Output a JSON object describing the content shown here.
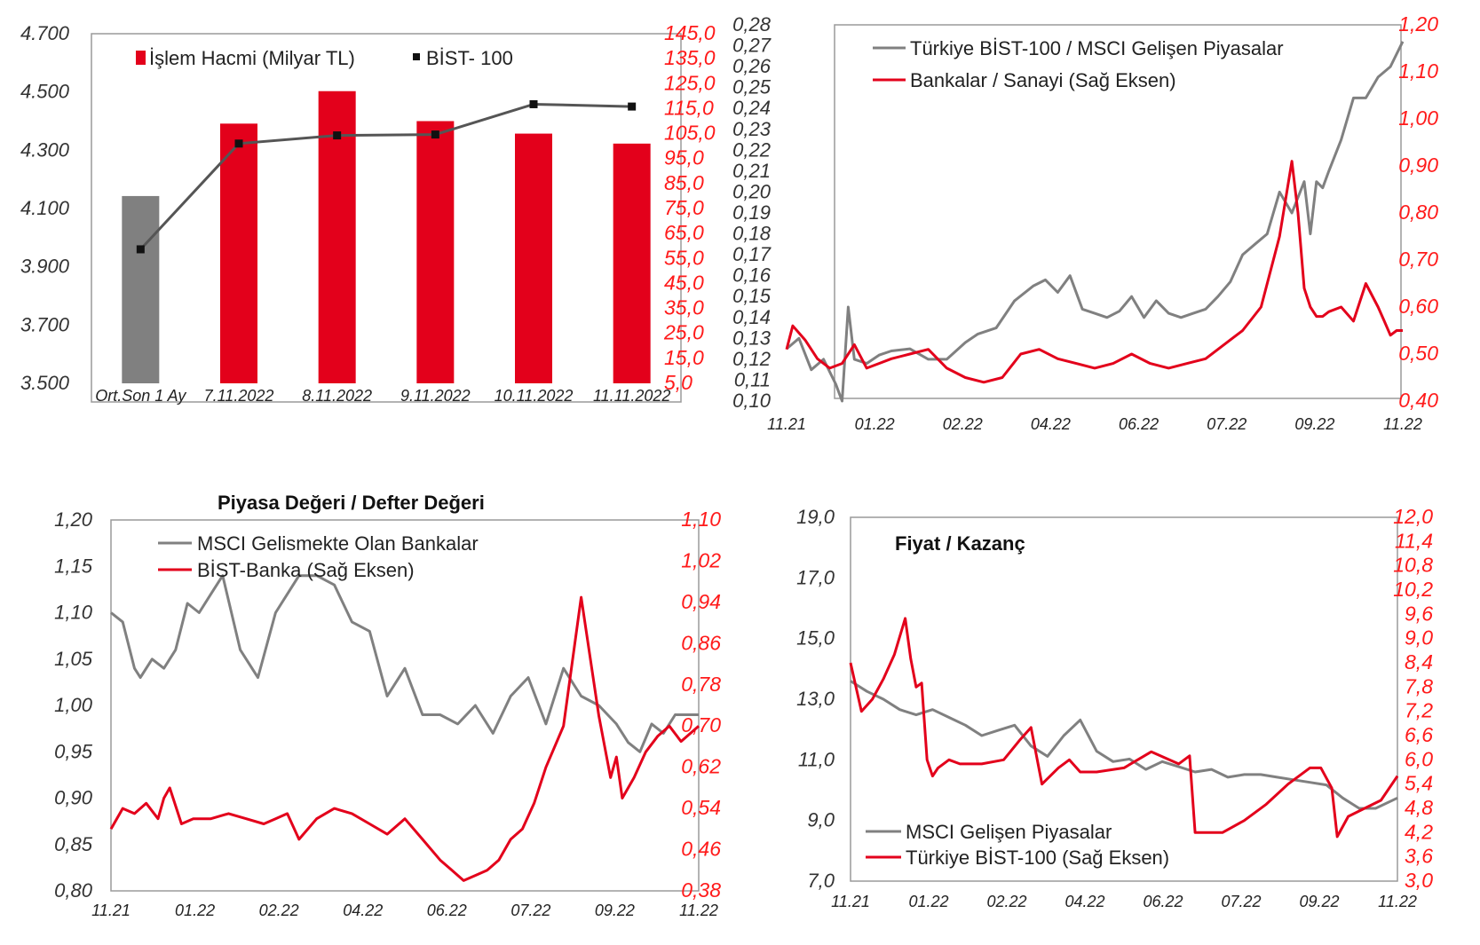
{
  "colors": {
    "red": "#e3001b",
    "gray": "#808080",
    "frame": "#9a9a9a",
    "axis_red": "#ff1a1a"
  },
  "chart_data": [
    {
      "type": "bar",
      "title": "",
      "categories": [
        "Ort.Son 1 Ay",
        "7.11.2022",
        "8.11.2022",
        "9.11.2022",
        "10.11.2022",
        "11.11.2022"
      ],
      "series": [
        {
          "name": "İşlem Hacmi (Milyar TL)",
          "axis": "right",
          "values": [
            80,
            109,
            122,
            110,
            105,
            101
          ]
        },
        {
          "name": "BİST- 100",
          "axis": "left",
          "type": "line",
          "values": [
            3960,
            4323,
            4351,
            4354,
            4458,
            4450
          ]
        }
      ],
      "ylim_left": [
        3500,
        4700
      ],
      "yticks_left": [
        "3.500",
        "3.700",
        "3.900",
        "4.100",
        "4.300",
        "4.500",
        "4.700"
      ],
      "ylim_right": [
        5,
        145
      ],
      "yticks_right": [
        "5,0",
        "15,0",
        "25,0",
        "35,0",
        "45,0",
        "55,0",
        "65,0",
        "75,0",
        "85,0",
        "95,0",
        "105,0",
        "115,0",
        "125,0",
        "135,0",
        "145,0"
      ],
      "legend": [
        "İşlem Hacmi (Milyar TL)",
        "BİST- 100"
      ],
      "legend_position": "top"
    },
    {
      "type": "line",
      "title": "",
      "xticks": [
        "11.21",
        "01.22",
        "02.22",
        "04.22",
        "06.22",
        "07.22",
        "09.22",
        "11.22"
      ],
      "ylim_left": [
        0.1,
        0.28
      ],
      "yticks_left": [
        "0,10",
        "0,11",
        "0,12",
        "0,13",
        "0,14",
        "0,15",
        "0,16",
        "0,17",
        "0,18",
        "0,19",
        "0,20",
        "0,21",
        "0,22",
        "0,23",
        "0,24",
        "0,25",
        "0,26",
        "0,27",
        "0,28"
      ],
      "ylim_right": [
        0.4,
        1.2
      ],
      "yticks_right": [
        "0,40",
        "0,50",
        "0,60",
        "0,70",
        "0,80",
        "0,90",
        "1,00",
        "1,10",
        "1,20"
      ],
      "series": [
        {
          "name": "Türkiye BİST-100 / MSCI Gelişen Piyasalar",
          "axis": "left",
          "color": "gray",
          "x": [
            0,
            0.02,
            0.04,
            0.06,
            0.08,
            0.09,
            0.1,
            0.11,
            0.13,
            0.15,
            0.17,
            0.2,
            0.23,
            0.26,
            0.29,
            0.31,
            0.34,
            0.37,
            0.4,
            0.42,
            0.44,
            0.46,
            0.48,
            0.5,
            0.52,
            0.54,
            0.56,
            0.58,
            0.6,
            0.62,
            0.64,
            0.66,
            0.68,
            0.7,
            0.72,
            0.74,
            0.76,
            0.78,
            0.8,
            0.82,
            0.84,
            0.85,
            0.86,
            0.87,
            0.88,
            0.9,
            0.92,
            0.94,
            0.96,
            0.98,
            1.0
          ],
          "y": [
            0.125,
            0.13,
            0.115,
            0.12,
            0.108,
            0.1,
            0.145,
            0.12,
            0.118,
            0.122,
            0.124,
            0.125,
            0.12,
            0.12,
            0.128,
            0.132,
            0.135,
            0.148,
            0.155,
            0.158,
            0.152,
            0.16,
            0.144,
            0.142,
            0.14,
            0.143,
            0.15,
            0.14,
            0.148,
            0.142,
            0.14,
            0.142,
            0.144,
            0.15,
            0.157,
            0.17,
            0.175,
            0.18,
            0.2,
            0.19,
            0.205,
            0.18,
            0.205,
            0.202,
            0.21,
            0.225,
            0.245,
            0.245,
            0.255,
            0.26,
            0.272
          ]
        },
        {
          "name": "Bankalar / Sanayi (Sağ Eksen)",
          "axis": "right",
          "color": "red",
          "x": [
            0,
            0.01,
            0.03,
            0.05,
            0.07,
            0.09,
            0.11,
            0.13,
            0.15,
            0.17,
            0.2,
            0.23,
            0.26,
            0.29,
            0.32,
            0.35,
            0.38,
            0.41,
            0.44,
            0.47,
            0.5,
            0.53,
            0.56,
            0.59,
            0.62,
            0.65,
            0.68,
            0.71,
            0.74,
            0.77,
            0.8,
            0.82,
            0.83,
            0.84,
            0.85,
            0.86,
            0.87,
            0.88,
            0.9,
            0.92,
            0.94,
            0.96,
            0.97,
            0.98,
            0.99,
            1.0
          ],
          "y": [
            0.51,
            0.56,
            0.53,
            0.49,
            0.47,
            0.48,
            0.52,
            0.47,
            0.48,
            0.49,
            0.5,
            0.51,
            0.47,
            0.45,
            0.44,
            0.45,
            0.5,
            0.51,
            0.49,
            0.48,
            0.47,
            0.48,
            0.5,
            0.48,
            0.47,
            0.48,
            0.49,
            0.52,
            0.55,
            0.6,
            0.75,
            0.91,
            0.8,
            0.64,
            0.6,
            0.58,
            0.58,
            0.59,
            0.6,
            0.57,
            0.65,
            0.6,
            0.57,
            0.54,
            0.55,
            0.55
          ]
        }
      ],
      "legend_position": "top-left"
    },
    {
      "type": "line",
      "title": "Piyasa Değeri / Defter Değeri",
      "xticks": [
        "11.21",
        "01.22",
        "02.22",
        "04.22",
        "06.22",
        "07.22",
        "09.22",
        "11.22"
      ],
      "ylim_left": [
        0.8,
        1.2
      ],
      "yticks_left": [
        "0,80",
        "0,85",
        "0,90",
        "0,95",
        "1,00",
        "1,05",
        "1,10",
        "1,15",
        "1,20"
      ],
      "ylim_right": [
        0.38,
        1.1
      ],
      "yticks_right": [
        "0,38",
        "0,46",
        "0,54",
        "0,62",
        "0,70",
        "0,78",
        "0,86",
        "0,94",
        "1,02",
        "1,10"
      ],
      "series": [
        {
          "name": "MSCI Gelismekte Olan Bankalar",
          "axis": "left",
          "color": "gray",
          "x": [
            0,
            0.02,
            0.04,
            0.05,
            0.07,
            0.09,
            0.11,
            0.13,
            0.15,
            0.17,
            0.19,
            0.22,
            0.25,
            0.28,
            0.3,
            0.32,
            0.35,
            0.38,
            0.41,
            0.44,
            0.47,
            0.5,
            0.53,
            0.56,
            0.59,
            0.62,
            0.65,
            0.68,
            0.71,
            0.74,
            0.77,
            0.8,
            0.83,
            0.86,
            0.88,
            0.9,
            0.92,
            0.94,
            0.96,
            0.98,
            1.0
          ],
          "y": [
            1.1,
            1.09,
            1.04,
            1.03,
            1.05,
            1.04,
            1.06,
            1.11,
            1.1,
            1.12,
            1.14,
            1.06,
            1.03,
            1.1,
            1.12,
            1.14,
            1.14,
            1.13,
            1.09,
            1.08,
            1.01,
            1.04,
            0.99,
            0.99,
            0.98,
            1.0,
            0.97,
            1.01,
            1.03,
            0.98,
            1.04,
            1.01,
            1.0,
            0.98,
            0.96,
            0.95,
            0.98,
            0.97,
            0.99,
            0.99,
            0.99
          ]
        },
        {
          "name": "BİST-Banka (Sağ Eksen)",
          "axis": "right",
          "color": "red",
          "x": [
            0,
            0.02,
            0.04,
            0.06,
            0.08,
            0.09,
            0.1,
            0.12,
            0.14,
            0.17,
            0.2,
            0.23,
            0.26,
            0.28,
            0.3,
            0.32,
            0.35,
            0.38,
            0.41,
            0.44,
            0.47,
            0.5,
            0.53,
            0.56,
            0.58,
            0.6,
            0.62,
            0.64,
            0.66,
            0.68,
            0.7,
            0.72,
            0.74,
            0.77,
            0.8,
            0.83,
            0.85,
            0.86,
            0.87,
            0.89,
            0.91,
            0.93,
            0.95,
            0.97,
            1.0
          ],
          "y": [
            0.5,
            0.54,
            0.53,
            0.55,
            0.52,
            0.56,
            0.58,
            0.51,
            0.52,
            0.52,
            0.53,
            0.52,
            0.51,
            0.52,
            0.53,
            0.48,
            0.52,
            0.54,
            0.53,
            0.51,
            0.49,
            0.52,
            0.48,
            0.44,
            0.42,
            0.4,
            0.41,
            0.42,
            0.44,
            0.48,
            0.5,
            0.55,
            0.62,
            0.7,
            0.95,
            0.72,
            0.6,
            0.64,
            0.56,
            0.6,
            0.65,
            0.68,
            0.7,
            0.67,
            0.7
          ]
        }
      ],
      "legend_position": "top-left"
    },
    {
      "type": "line",
      "title": "Fiyat / Kazanç",
      "xticks": [
        "11.21",
        "01.22",
        "02.22",
        "04.22",
        "06.22",
        "07.22",
        "09.22",
        "11.22"
      ],
      "ylim_left": [
        7.0,
        21.0
      ],
      "yticks_left": [
        "7,0",
        "9,0",
        "11,0",
        "13,0",
        "15,0",
        "17,0",
        "19,0"
      ],
      "ylim_right": [
        3.0,
        12.0
      ],
      "yticks_right": [
        "3,0",
        "3,6",
        "4,2",
        "4,8",
        "5,4",
        "6,0",
        "6,6",
        "7,2",
        "7,8",
        "8,4",
        "9,0",
        "9,6",
        "10,2",
        "10,8",
        "11,4",
        "12,0"
      ],
      "series": [
        {
          "name": "MSCI Gelişen Piyasalar",
          "axis": "left",
          "color": "gray",
          "x": [
            0,
            0.03,
            0.06,
            0.09,
            0.12,
            0.15,
            0.18,
            0.21,
            0.24,
            0.27,
            0.3,
            0.33,
            0.36,
            0.39,
            0.42,
            0.45,
            0.48,
            0.51,
            0.54,
            0.57,
            0.6,
            0.63,
            0.66,
            0.69,
            0.72,
            0.75,
            0.78,
            0.81,
            0.84,
            0.87,
            0.9,
            0.93,
            0.96,
            1.0
          ],
          "y": [
            14.7,
            14.3,
            14.0,
            13.6,
            13.4,
            13.6,
            13.3,
            13.0,
            12.6,
            12.8,
            13.0,
            12.2,
            11.8,
            12.6,
            13.2,
            12.0,
            11.6,
            11.7,
            11.3,
            11.6,
            11.4,
            11.2,
            11.3,
            11.0,
            11.1,
            11.1,
            11.0,
            10.9,
            10.8,
            10.7,
            10.2,
            9.8,
            9.8,
            10.2
          ]
        },
        {
          "name": "Türkiye BİST-100 (Sağ Eksen)",
          "axis": "right",
          "color": "red",
          "x": [
            0,
            0.02,
            0.04,
            0.06,
            0.08,
            0.1,
            0.11,
            0.12,
            0.13,
            0.14,
            0.15,
            0.16,
            0.18,
            0.2,
            0.24,
            0.28,
            0.31,
            0.33,
            0.35,
            0.38,
            0.4,
            0.42,
            0.45,
            0.5,
            0.55,
            0.6,
            0.62,
            0.63,
            0.65,
            0.68,
            0.72,
            0.76,
            0.8,
            0.84,
            0.86,
            0.88,
            0.89,
            0.91,
            0.94,
            0.97,
            1.0
          ],
          "y": [
            8.4,
            7.2,
            7.5,
            8.0,
            8.6,
            9.5,
            8.5,
            7.8,
            7.9,
            6.0,
            5.6,
            5.8,
            6.0,
            5.9,
            5.9,
            6.0,
            6.5,
            6.8,
            5.4,
            5.8,
            6.0,
            5.7,
            5.7,
            5.8,
            6.2,
            5.9,
            6.1,
            4.2,
            4.2,
            4.2,
            4.5,
            4.9,
            5.4,
            5.8,
            5.8,
            5.3,
            4.1,
            4.6,
            4.8,
            5.0,
            5.6
          ]
        }
      ],
      "legend_position": "bottom-left"
    }
  ]
}
